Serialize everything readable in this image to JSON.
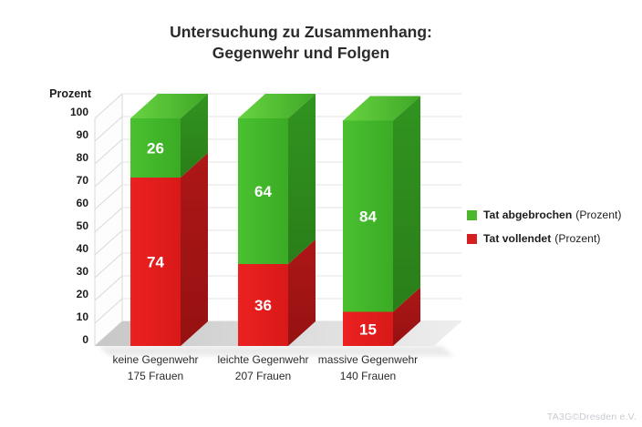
{
  "title": {
    "line1": "Untersuchung zu Zusammenhang:",
    "line2": "Gegenwehr und Folgen"
  },
  "legend": {
    "items": [
      {
        "name": "Tat abgebrochen",
        "suffix": "(Prozent)",
        "color": "#4cb62e"
      },
      {
        "name": "Tat vollendet",
        "suffix": "(Prozent)",
        "color": "#d42020"
      }
    ]
  },
  "watermark": "TA3G©Dresden e.V.",
  "chart_data": {
    "type": "bar",
    "subtype": "stacked-3d-column",
    "title": "Untersuchung zu Zusammenhang: Gegenwehr und Folgen",
    "xlabel": "",
    "ylabel": "Prozent",
    "ylim": [
      0,
      100
    ],
    "y_ticks": [
      0,
      10,
      20,
      30,
      40,
      50,
      60,
      70,
      80,
      90,
      100
    ],
    "grid": true,
    "legend_position": "right",
    "categories": [
      {
        "line1": "keine Gegenwehr",
        "line2": "175 Frauen"
      },
      {
        "line1": "leichte Gegenwehr",
        "line2": "207 Frauen"
      },
      {
        "line1": "massive Gegenwehr",
        "line2": "140 Frauen"
      }
    ],
    "series": [
      {
        "name": "Tat abgebrochen (Prozent)",
        "values": [
          26,
          64,
          84
        ],
        "color_front": "#44bd2c",
        "color_side": "#2c8e1d",
        "color_top_light": "#68d441",
        "color_top_dark": "#3fa727"
      },
      {
        "name": "Tat vollendet (Prozent)",
        "values": [
          74,
          36,
          15
        ],
        "color_front": "#e41d1d",
        "color_side": "#a51515"
      }
    ],
    "colors": {
      "grid": "#e3e3e3",
      "wall_line": "#d9d9d9",
      "floor_left": "#c7c7c7",
      "floor_right": "#eeeeee",
      "value_label": "#ffffff"
    }
  }
}
